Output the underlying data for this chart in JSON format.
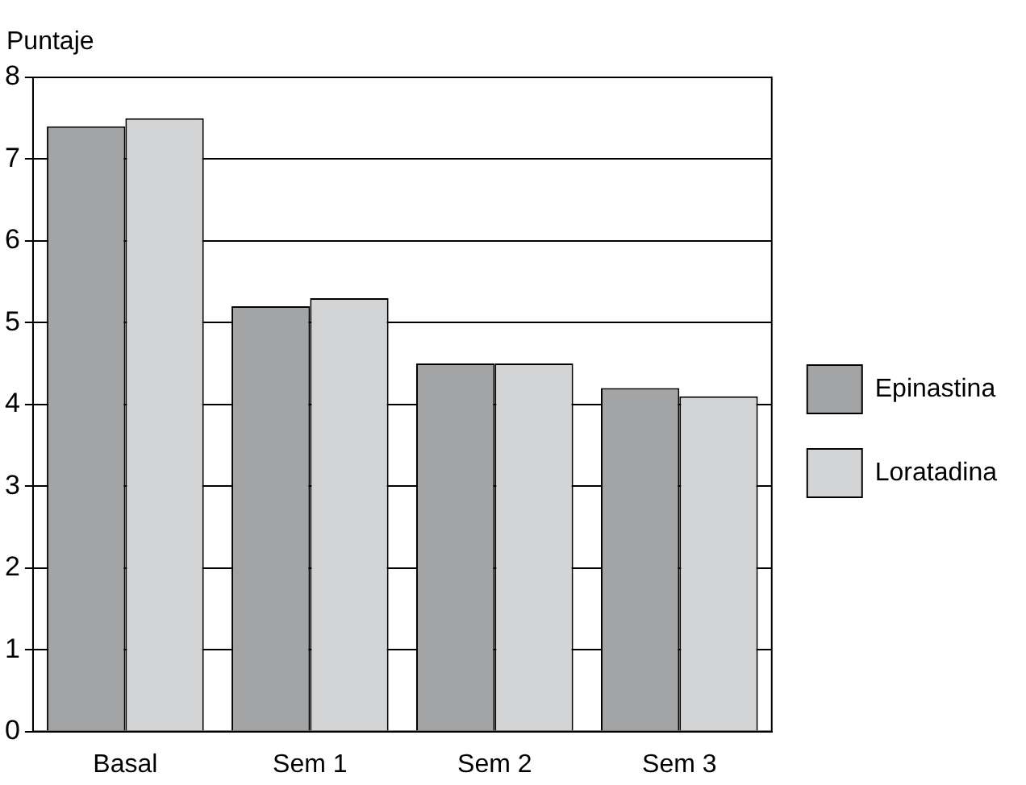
{
  "chart_data": {
    "type": "bar",
    "ylabel": "Puntaje",
    "categories": [
      "Basal",
      "Sem 1",
      "Sem 2",
      "Sem 3"
    ],
    "series": [
      {
        "name": "Epinastina",
        "color": "#a3a4a6",
        "values": [
          7.4,
          5.2,
          4.5,
          4.2
        ]
      },
      {
        "name": "Loratadina",
        "color": "#d3d4d6",
        "values": [
          7.5,
          5.3,
          4.5,
          4.1
        ]
      }
    ],
    "ylim": [
      0,
      8
    ],
    "yticks": [
      0,
      1,
      2,
      3,
      4,
      5,
      6,
      7,
      8
    ],
    "grid": "y",
    "legend": "right"
  }
}
